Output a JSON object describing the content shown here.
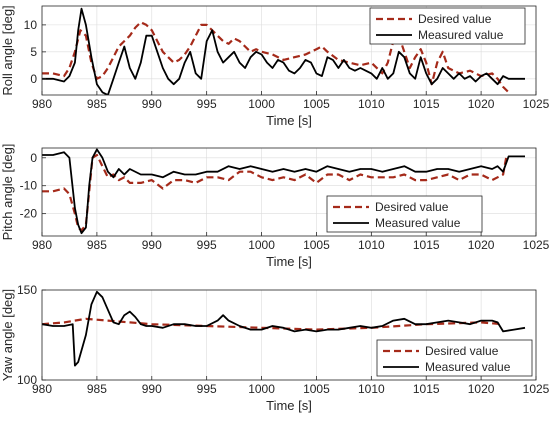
{
  "chart_data": [
    {
      "type": "line",
      "xlabel": "Time [s]",
      "ylabel": "Roll angle [deg]",
      "xlim": [
        980,
        1025
      ],
      "ylim": [
        -3,
        13.5
      ],
      "xticks": [
        980,
        985,
        990,
        995,
        1000,
        1005,
        1010,
        1015,
        1020,
        1025
      ],
      "yticks": [
        0,
        5,
        10
      ],
      "grid": true,
      "legend_position": "top-right",
      "series": [
        {
          "name": "Desired value",
          "style": "dashed",
          "color": "#a52a1a",
          "x": [
            980,
            981,
            982,
            982.5,
            983,
            983.5,
            984,
            984.5,
            985,
            985.5,
            986,
            986.5,
            987,
            987.5,
            988,
            988.5,
            989,
            989.5,
            990,
            990.5,
            991,
            991.5,
            992,
            992.5,
            993,
            993.5,
            994,
            994.5,
            995,
            995.5,
            996,
            996.5,
            997,
            997.5,
            998,
            998.5,
            999,
            999.5,
            1000,
            1001,
            1002,
            1003,
            1004,
            1005,
            1005.5,
            1006,
            1007,
            1008,
            1009,
            1010,
            1011,
            1011.5,
            1012,
            1012.5,
            1013,
            1013.5,
            1014,
            1014.5,
            1015,
            1015.5,
            1016,
            1016.5,
            1017,
            1018,
            1019,
            1020,
            1021,
            1021.5,
            1022,
            1022.5
          ],
          "y": [
            1,
            1,
            0.5,
            2,
            5,
            9,
            8,
            3,
            0,
            0.5,
            2,
            4,
            6,
            7,
            8,
            9.5,
            10.5,
            10,
            9,
            7,
            5,
            4,
            3,
            3.5,
            4.5,
            6,
            8,
            10,
            10,
            9,
            8,
            7,
            6.5,
            7.5,
            7,
            6,
            5,
            5.5,
            5,
            4.5,
            3.5,
            4,
            4.5,
            5.5,
            6,
            5,
            3.5,
            3,
            2.5,
            3,
            1,
            3,
            7,
            8,
            5,
            2,
            4,
            5.5,
            3,
            -1,
            3,
            5,
            2,
            1,
            1.5,
            0.5,
            1,
            0,
            -1.5,
            -2.5
          ]
        },
        {
          "name": "Measured value",
          "style": "solid",
          "color": "#000000",
          "x": [
            980,
            981,
            982,
            982.5,
            983,
            983.3,
            983.6,
            984,
            984.5,
            985,
            985.5,
            986,
            986.5,
            987,
            987.5,
            988,
            988.5,
            989,
            989.5,
            990,
            990.5,
            991,
            991.5,
            992,
            992.5,
            993,
            993.5,
            994,
            994.5,
            995,
            995.5,
            996,
            996.5,
            997,
            997.5,
            998,
            998.5,
            999,
            999.5,
            1000,
            1000.5,
            1001,
            1001.5,
            1002,
            1002.5,
            1003,
            1003.5,
            1004,
            1004.5,
            1005,
            1005.5,
            1006,
            1006.5,
            1007,
            1007.5,
            1008,
            1008.5,
            1009,
            1009.5,
            1010,
            1010.5,
            1011,
            1011.5,
            1012,
            1012.5,
            1013,
            1013.5,
            1014,
            1014.5,
            1015,
            1015.5,
            1016,
            1016.5,
            1017,
            1017.5,
            1018,
            1018.5,
            1019,
            1019.5,
            1020,
            1020.5,
            1021,
            1021.5,
            1022,
            1022.5,
            1023,
            1023.5,
            1024
          ],
          "y": [
            0,
            0,
            -0.5,
            0.5,
            3,
            9,
            13,
            10,
            4,
            -1,
            -2.5,
            -3,
            0,
            3,
            6,
            2,
            0,
            3,
            8,
            8,
            5,
            2,
            0,
            -1,
            0,
            3,
            5,
            1,
            0,
            7,
            9,
            5,
            3,
            4,
            5,
            3,
            2,
            4,
            5,
            4.5,
            3,
            2,
            3.5,
            3,
            1.5,
            1,
            2,
            3.5,
            3,
            1,
            0.5,
            4,
            3.5,
            2,
            3.5,
            2,
            1.5,
            2,
            1.5,
            1,
            0,
            2,
            0,
            1,
            5,
            4,
            1,
            0,
            4,
            1,
            -1,
            0,
            2,
            1,
            0,
            1,
            0,
            0.5,
            -0.5,
            0.5,
            1,
            0,
            -1,
            0.5,
            0,
            0,
            0,
            0
          ]
        }
      ]
    },
    {
      "type": "line",
      "xlabel": "Time [s]",
      "ylabel": "Pitch angle [deg]",
      "xlim": [
        980,
        1025
      ],
      "ylim": [
        -28,
        3.5
      ],
      "xticks": [
        980,
        985,
        990,
        995,
        1000,
        1005,
        1010,
        1015,
        1020,
        1025
      ],
      "yticks": [
        -20,
        -10,
        0
      ],
      "grid": true,
      "legend_position": "bottom-right",
      "series": [
        {
          "name": "Desired value",
          "style": "dashed",
          "color": "#a52a1a",
          "x": [
            980,
            981,
            982,
            982.5,
            983,
            983.3,
            983.6,
            984,
            984.3,
            984.6,
            985,
            985.5,
            986,
            986.5,
            987,
            987.5,
            988,
            989,
            990,
            991,
            992,
            993,
            994,
            995,
            996,
            997,
            998,
            999,
            1000,
            1001,
            1002,
            1003,
            1004,
            1005,
            1006,
            1007,
            1008,
            1009,
            1010,
            1011,
            1012,
            1013,
            1014,
            1015,
            1016,
            1017,
            1018,
            1019,
            1020,
            1021,
            1021.5,
            1022,
            1022.3
          ],
          "y": [
            -12,
            -12,
            -11,
            -13,
            -20,
            -25,
            -26,
            -24,
            -12,
            0,
            1,
            -3,
            -7,
            -6,
            -8,
            -7,
            -9,
            -9,
            -8,
            -11,
            -8,
            -8,
            -9,
            -7,
            -7,
            -8,
            -5,
            -5,
            -7,
            -8,
            -7,
            -8,
            -6,
            -9,
            -6,
            -6,
            -8,
            -6,
            -7,
            -7,
            -7,
            -6,
            -8,
            -8,
            -7,
            -6,
            -8,
            -6,
            -6,
            -8,
            -7,
            -6,
            0.5
          ]
        },
        {
          "name": "Measured value",
          "style": "solid",
          "color": "#000000",
          "x": [
            980,
            981,
            982,
            982.5,
            983,
            983.3,
            983.6,
            984,
            984.3,
            984.6,
            985,
            985.5,
            986,
            986.5,
            987,
            987.5,
            988,
            989,
            990,
            991,
            992,
            993,
            994,
            995,
            996,
            997,
            998,
            999,
            1000,
            1001,
            1002,
            1003,
            1004,
            1005,
            1006,
            1007,
            1008,
            1009,
            1010,
            1011,
            1012,
            1013,
            1014,
            1015,
            1016,
            1017,
            1018,
            1019,
            1020,
            1021,
            1021.5,
            1022,
            1022.5,
            1023,
            1024
          ],
          "y": [
            1,
            1,
            2,
            0,
            -18,
            -24,
            -27,
            -25,
            -10,
            0,
            3,
            0,
            -5,
            -7,
            -4,
            -6,
            -4,
            -6,
            -6,
            -7,
            -5,
            -6,
            -6,
            -5,
            -5,
            -3,
            -4,
            -3,
            -4,
            -5,
            -4,
            -5,
            -4,
            -5,
            -3,
            -4,
            -5,
            -4,
            -4,
            -5,
            -4,
            -3,
            -5,
            -5,
            -4,
            -4,
            -5,
            -4,
            -3,
            -4,
            -3,
            -5,
            0.5,
            0.5,
            0.5
          ]
        }
      ]
    },
    {
      "type": "line",
      "xlabel": "Time [s]",
      "ylabel": "Yaw angle [deg]",
      "xlim": [
        980,
        1025
      ],
      "ylim": [
        100,
        150
      ],
      "xticks": [
        980,
        985,
        990,
        995,
        1000,
        1005,
        1010,
        1015,
        1020,
        1025
      ],
      "yticks": [
        100,
        150
      ],
      "grid": true,
      "legend_position": "bottom-right",
      "series": [
        {
          "name": "Desired value",
          "style": "dashed",
          "color": "#a52a1a",
          "x": [
            980,
            982,
            984,
            986,
            988,
            990,
            995,
            1000,
            1005,
            1010,
            1015,
            1020,
            1022
          ],
          "y": [
            131,
            132,
            134,
            133,
            132,
            131,
            130,
            129,
            128,
            129,
            131,
            132,
            131
          ]
        },
        {
          "name": "Measured value",
          "style": "solid",
          "color": "#000000",
          "x": [
            980,
            981,
            982,
            982.8,
            983,
            983.3,
            984,
            984.5,
            985,
            985.5,
            986,
            986.5,
            987,
            987.5,
            988,
            988.5,
            989,
            989.5,
            990,
            991,
            992,
            993,
            994,
            995,
            996,
            996.5,
            997,
            998,
            999,
            1000,
            1001,
            1002,
            1003,
            1004,
            1005,
            1006,
            1007,
            1008,
            1009,
            1010,
            1011,
            1012,
            1013,
            1014,
            1015,
            1016,
            1017,
            1018,
            1019,
            1020,
            1021,
            1021.5,
            1022,
            1023,
            1024
          ],
          "y": [
            131,
            130,
            130,
            131,
            108,
            110,
            125,
            142,
            149,
            146,
            139,
            132,
            131,
            136,
            138,
            135,
            131,
            130,
            130,
            129,
            131,
            131,
            130,
            130,
            133,
            136,
            133,
            130,
            128,
            128,
            130,
            129,
            127,
            128,
            127,
            128,
            128,
            129,
            130,
            129,
            130,
            133,
            134,
            131,
            131,
            132,
            133,
            132,
            131,
            133,
            133,
            132,
            127,
            128,
            129
          ]
        }
      ]
    }
  ]
}
